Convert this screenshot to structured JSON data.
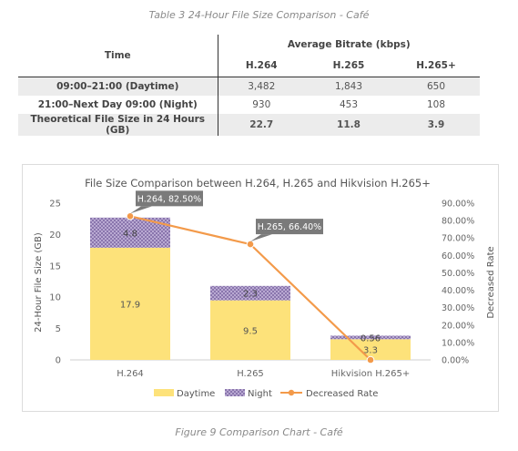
{
  "table": {
    "caption": "Table 3 24-Hour File Size Comparison - Café",
    "col_time": "Time",
    "group_header": "Average Bitrate (kbps)",
    "codecs": [
      "H.264",
      "H.265",
      "H.265+"
    ],
    "rows": [
      {
        "label": "09:00–21:00 (Daytime)",
        "values": [
          "3,482",
          "1,843",
          "650"
        ]
      },
      {
        "label": "21:00–Next Day 09:00 (Night)",
        "values": [
          "930",
          "453",
          "108"
        ]
      },
      {
        "label": "Theoretical File Size in 24 Hours (GB)",
        "values": [
          "22.7",
          "11.8",
          "3.9"
        ]
      }
    ]
  },
  "chart_data": {
    "type": "bar",
    "title": "File Size Comparison between H.264, H.265 and Hikvision H.265+",
    "categories": [
      "H.264",
      "H.265",
      "Hikvision H.265+"
    ],
    "series": [
      {
        "name": "Daytime",
        "kind": "bar",
        "stacked": true,
        "color": "#fde27a",
        "values": [
          17.9,
          9.5,
          3.3
        ]
      },
      {
        "name": "Night",
        "kind": "bar",
        "stacked": true,
        "color": "#9b8ab9",
        "pattern": "checker",
        "values": [
          4.8,
          2.3,
          0.56
        ]
      },
      {
        "name": "Decreased Rate",
        "kind": "line",
        "axis": "right",
        "color": "#f39a4a",
        "values": [
          82.5,
          66.4,
          0.0
        ]
      }
    ],
    "data_labels": {
      "Daytime": [
        "17.9",
        "9.5",
        "3.3"
      ],
      "Night": [
        "4.8",
        "2.3",
        "0.56"
      ]
    },
    "callouts": [
      "H.264, 82.50%",
      "H.265, 66.40%"
    ],
    "ylabel": "24-Hour File Size (GB)",
    "ylabel_right": "Decreased Rate",
    "ylim": [
      0,
      25
    ],
    "yticks": [
      "0",
      "5",
      "10",
      "15",
      "20",
      "25"
    ],
    "ylim_right": [
      0,
      90
    ],
    "yticks_right": [
      "0.00%",
      "10.00%",
      "20.00%",
      "30.00%",
      "40.00%",
      "50.00%",
      "60.00%",
      "70.00%",
      "80.00%",
      "90.00%"
    ],
    "grid": false,
    "legend_position": "bottom"
  },
  "figure": {
    "caption": "Figure 9    Comparison Chart - Café"
  }
}
